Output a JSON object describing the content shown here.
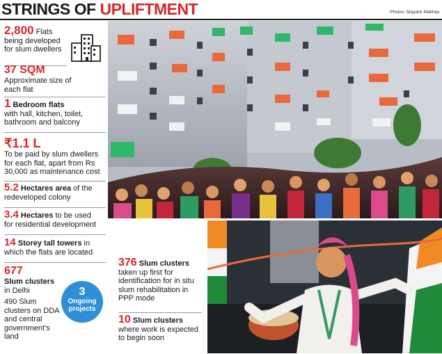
{
  "header": {
    "title_part1": "STRINGS OF ",
    "title_part2": "UPLIFTMENT",
    "photo_credit": "Photos: Mayank Makhija"
  },
  "facts": {
    "flats": {
      "value": "2,800",
      "text_inline": "Flats",
      "text_rest": "being developed for slum dwellers"
    },
    "size": {
      "value": "37 SQM",
      "text": "Approximate size of each flat"
    },
    "bedroom": {
      "value": "1",
      "label": "Bedroom flats",
      "text": "with hall, kitchen, toilet, bathroom and balcony"
    },
    "cost": {
      "value": "₹1.1 L",
      "text": "To be paid by slum dwellers for each flat, apart from Rs 30,000 as maintenance cost"
    },
    "area": {
      "value": "5.2",
      "label": "Hectares area",
      "text_inline": "of the",
      "text_rest": "redeveloped colony"
    },
    "residential": {
      "value": "3.4",
      "label": "Hectares",
      "text_inline": "to be used",
      "text_rest": "for residential development"
    },
    "towers": {
      "value": "14",
      "label": "Storey tall towers",
      "text_inline": "in",
      "text_rest": "which the flats are located"
    },
    "clusters": {
      "value": "677",
      "label": "Slum clusters",
      "text_inline": "in Delhi",
      "text_rest": "490 Slum clusters on DDA and central government's land"
    },
    "projects": {
      "value": "3",
      "label": "Ongoing projects"
    },
    "insitu": {
      "value": "376",
      "label": "Slum clusters",
      "text": "taken up first for identification for in situ slum rehabilitation in PPP mode"
    },
    "soon": {
      "value": "10",
      "label": "Slum clusters",
      "text": "where work is expected to begin soon"
    }
  },
  "colors": {
    "accent": "#d7262c",
    "badge": "#2f8fd6"
  }
}
